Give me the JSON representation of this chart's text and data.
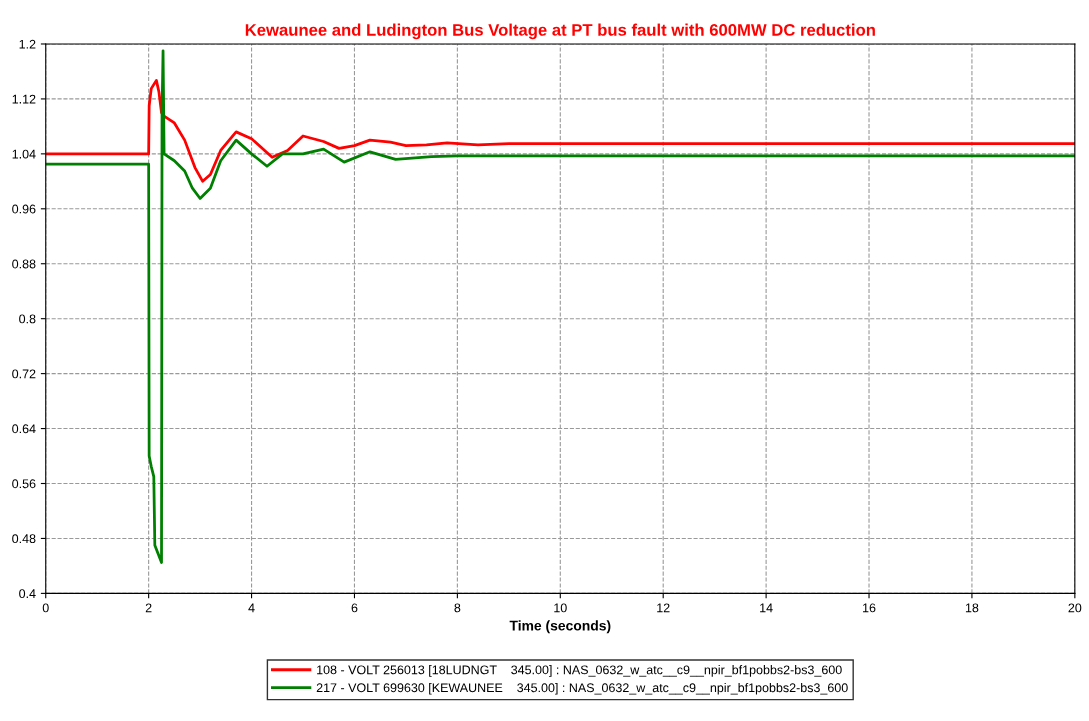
{
  "chart_data": {
    "type": "line",
    "title": "Kewaunee and Ludington Bus Voltage at PT bus fault with 600MW DC reduction",
    "xlabel": "Time (seconds)",
    "xlim": [
      0,
      20
    ],
    "xticks": [
      0,
      2,
      4,
      6,
      8,
      10,
      12,
      14,
      16,
      18,
      20
    ],
    "ylim": [
      0.4,
      1.2
    ],
    "yticks": [
      0.4,
      0.48,
      0.56,
      0.64,
      0.72,
      0.8,
      0.88,
      0.96,
      1.04,
      1.12,
      1.2
    ],
    "grid": true,
    "legend": "bottom",
    "marker": "none",
    "line_style": "solid",
    "series": [
      {
        "name": "108 - VOLT 256013 [18LUDNGT    345.00] : NAS_0632_w_atc__c9__npir_bf1pobbs2-bs3_600",
        "color": "#ff0000",
        "x": [
          0,
          2.0,
          2.01,
          2.05,
          2.15,
          2.2,
          2.25,
          2.3,
          2.5,
          2.7,
          2.9,
          3.05,
          3.2,
          3.4,
          3.7,
          4.0,
          4.4,
          4.7,
          5.0,
          5.4,
          5.7,
          6.0,
          6.3,
          6.7,
          7.0,
          7.4,
          7.8,
          8.4,
          9.0,
          10,
          12,
          14,
          16,
          18,
          20
        ],
        "values": [
          1.04,
          1.04,
          1.11,
          1.135,
          1.147,
          1.13,
          1.1,
          1.095,
          1.085,
          1.06,
          1.02,
          1.0,
          1.01,
          1.045,
          1.072,
          1.062,
          1.035,
          1.045,
          1.066,
          1.058,
          1.048,
          1.052,
          1.06,
          1.057,
          1.052,
          1.053,
          1.056,
          1.053,
          1.055,
          1.055,
          1.055,
          1.055,
          1.055,
          1.055,
          1.055
        ]
      },
      {
        "name": "217 - VOLT 699630 [KEWAUNEE    345.00] : NAS_0632_w_atc__c9__npir_bf1pobbs2-bs3_600",
        "color": "#008000",
        "x": [
          0,
          2.0,
          2.01,
          2.05,
          2.1,
          2.12,
          2.25,
          2.26,
          2.28,
          2.3,
          2.5,
          2.7,
          2.85,
          3.0,
          3.2,
          3.4,
          3.7,
          4.0,
          4.3,
          4.6,
          5.0,
          5.4,
          5.8,
          6.3,
          6.8,
          7.5,
          8.0,
          9.0,
          10,
          12,
          14,
          16,
          18,
          20
        ],
        "values": [
          1.025,
          1.025,
          0.6,
          0.585,
          0.57,
          0.47,
          0.445,
          1.1,
          1.19,
          1.04,
          1.03,
          1.015,
          0.99,
          0.975,
          0.99,
          1.03,
          1.06,
          1.04,
          1.022,
          1.04,
          1.04,
          1.047,
          1.028,
          1.043,
          1.032,
          1.036,
          1.037,
          1.037,
          1.037,
          1.037,
          1.037,
          1.037,
          1.037,
          1.037
        ]
      }
    ]
  }
}
